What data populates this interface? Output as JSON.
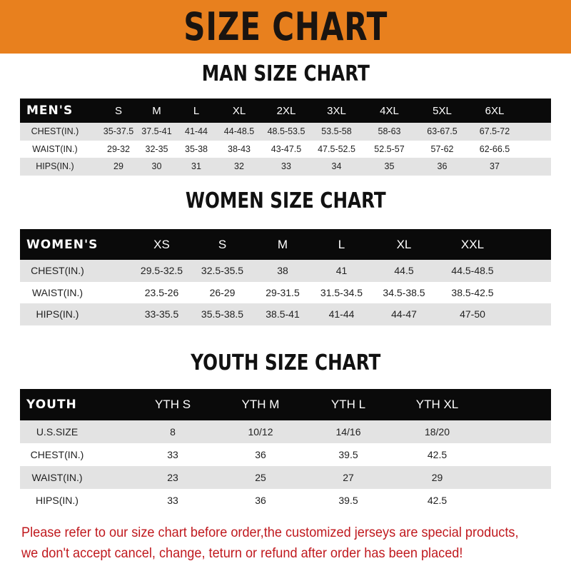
{
  "banner_title": "SIZE CHART",
  "colors": {
    "banner": "#E8801E",
    "header_row": "#0a0a0a",
    "stripe": "#e3e3e3",
    "note": "#c0191e"
  },
  "men": {
    "title": "MAN SIZE CHART",
    "header": [
      "MEN'S",
      "S",
      "M",
      "L",
      "XL",
      "2XL",
      "3XL",
      "4XL",
      "5XL",
      "6XL"
    ],
    "rows": [
      [
        "CHEST(IN.)",
        "35-37.5",
        "37.5-41",
        "41-44",
        "44-48.5",
        "48.5-53.5",
        "53.5-58",
        "58-63",
        "63-67.5",
        "67.5-72"
      ],
      [
        "WAIST(IN.)",
        "29-32",
        "32-35",
        "35-38",
        "38-43",
        "43-47.5",
        "47.5-52.5",
        "52.5-57",
        "57-62",
        "62-66.5"
      ],
      [
        "HIPS(IN.)",
        "29",
        "30",
        "31",
        "32",
        "33",
        "34",
        "35",
        "36",
        "37"
      ]
    ]
  },
  "women": {
    "title": "WOMEN SIZE CHART",
    "header": [
      "WOMEN'S",
      "XS",
      "S",
      "M",
      "L",
      "XL",
      "XXL"
    ],
    "rows": [
      [
        "CHEST(IN.)",
        "29.5-32.5",
        "32.5-35.5",
        "38",
        "41",
        "44.5",
        "44.5-48.5"
      ],
      [
        "WAIST(IN.)",
        "23.5-26",
        "26-29",
        "29-31.5",
        "31.5-34.5",
        "34.5-38.5",
        "38.5-42.5"
      ],
      [
        "HIPS(IN.)",
        "33-35.5",
        "35.5-38.5",
        "38.5-41",
        "41-44",
        "44-47",
        "47-50"
      ]
    ]
  },
  "youth": {
    "title": "YOUTH SIZE CHART",
    "header": [
      "YOUTH",
      "YTH S",
      "YTH M",
      "YTH L",
      "YTH XL"
    ],
    "rows": [
      [
        "U.S.SIZE",
        "8",
        "10/12",
        "14/16",
        "18/20"
      ],
      [
        "CHEST(IN.)",
        "33",
        "36",
        "39.5",
        "42.5"
      ],
      [
        "WAIST(IN.)",
        "23",
        "25",
        "27",
        "29"
      ],
      [
        "HIPS(IN.)",
        "33",
        "36",
        "39.5",
        "42.5"
      ]
    ]
  },
  "note": {
    "line1": "Please refer to our size chart before order,the customized jerseys are special products,",
    "line2": "we don't accept cancel, change, teturn or refund after order has been placed!"
  }
}
